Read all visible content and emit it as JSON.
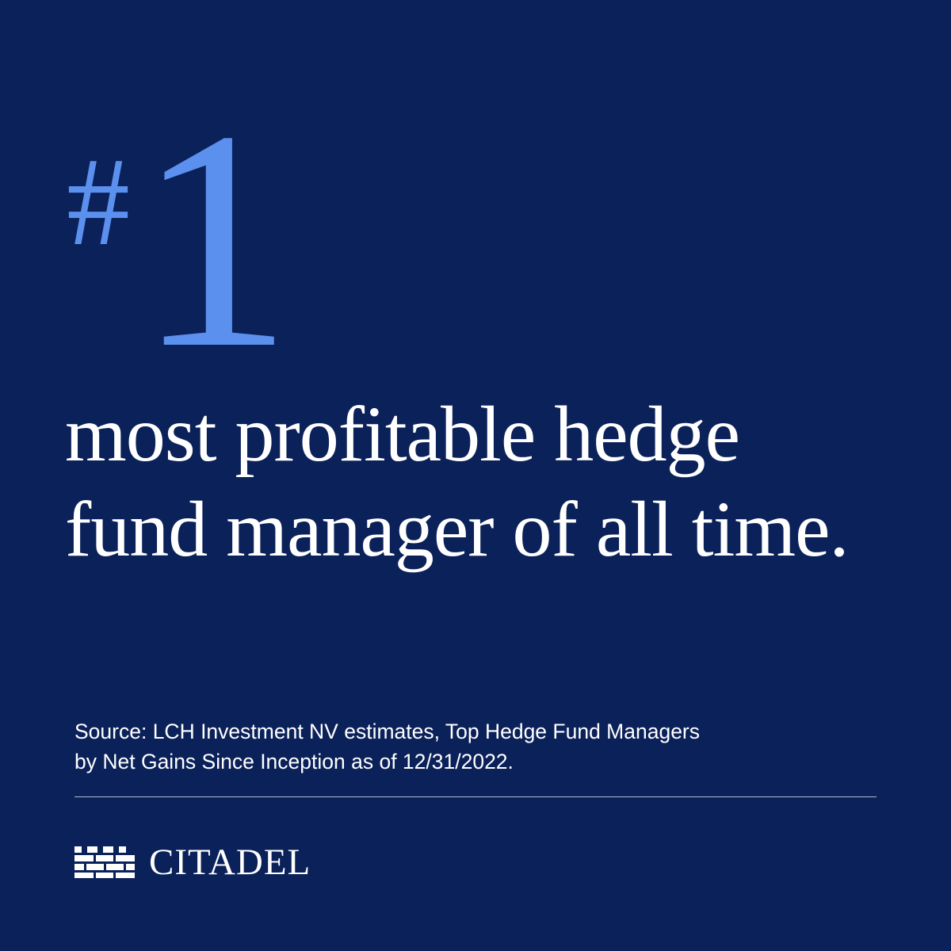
{
  "rank": {
    "hash": "#",
    "number": "1"
  },
  "headline": {
    "line1": "most profitable hedge",
    "line2": "fund manager of all time."
  },
  "source": {
    "line1": "Source: LCH Investment NV estimates, Top Hedge Fund Managers",
    "line2": "by Net Gains Since Inception as of 12/31/2022."
  },
  "brand": {
    "name": "CITADEL",
    "logo_icon": "castle-wall-icon"
  },
  "colors": {
    "background": "#0b2159",
    "accent": "#5b90ee",
    "text": "#ffffff"
  }
}
